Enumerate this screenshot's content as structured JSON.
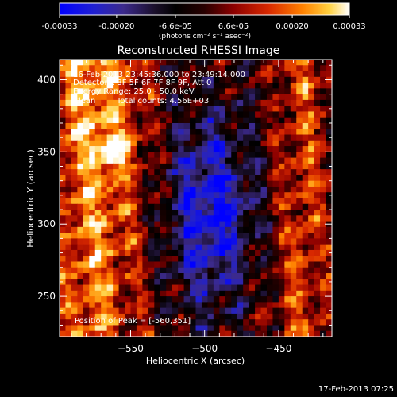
{
  "colorbar": {
    "ticks": [
      "-0.00033",
      "-0.00020",
      "-6.6e-05",
      "6.6e-05",
      "0.00020",
      "0.00033"
    ],
    "tick_values": [
      -0.00033,
      -0.0002,
      -6.6e-05,
      6.6e-05,
      0.0002,
      0.00033
    ],
    "range": [
      -0.00033,
      0.00033
    ],
    "unit_label": "(photons cm⁻² s⁻¹ asec⁻²)"
  },
  "plot": {
    "title": "Reconstructed RHESSI Image",
    "xlabel": "Heliocentric X (arcsec)",
    "ylabel": "Heliocentric Y (arcsec)",
    "xticks": [
      "−550",
      "−500",
      "−450"
    ],
    "xtick_values": [
      -550,
      -500,
      -450
    ],
    "yticks": [
      "250",
      "300",
      "350",
      "400"
    ],
    "ytick_values": [
      250,
      300,
      350,
      400
    ],
    "xlim": [
      -598,
      -414
    ],
    "ylim": [
      222,
      414
    ]
  },
  "annotations": {
    "line1": "16-Feb-2013 23:45:36.000 to 23:49:14.000",
    "line2": "Detectors: 3F 5F 6F 7F 8F 9F, Att 0",
    "line3": "Energy Range: 25.0 - 50.0 keV",
    "line4_left": "Clean",
    "line4_right": "Total counts: 4.56E+03",
    "peak": "Position of Peak = [-560,351]"
  },
  "footer": {
    "timestamp": "17-Feb-2013 07:25"
  },
  "colors": {
    "background": "#000000",
    "text": "#ffffff",
    "colormap": [
      "#0000ff",
      "#2222aa",
      "#3a2078",
      "#23122c",
      "#000000",
      "#400000",
      "#8c0000",
      "#d02000",
      "#ff6400",
      "#ffb400",
      "#ffff96",
      "#ffffff"
    ]
  },
  "chart_data": {
    "type": "heatmap",
    "title": "Reconstructed RHESSI Image",
    "xlabel": "Heliocentric X (arcsec)",
    "ylabel": "Heliocentric Y (arcsec)",
    "xlim": [
      -598,
      -414
    ],
    "ylim": [
      222,
      414
    ],
    "value_range": [
      -0.00033,
      0.00033
    ],
    "peak": [
      -560,
      351
    ],
    "grid_size": [
      46,
      48
    ],
    "legend": "colorbar-top"
  }
}
